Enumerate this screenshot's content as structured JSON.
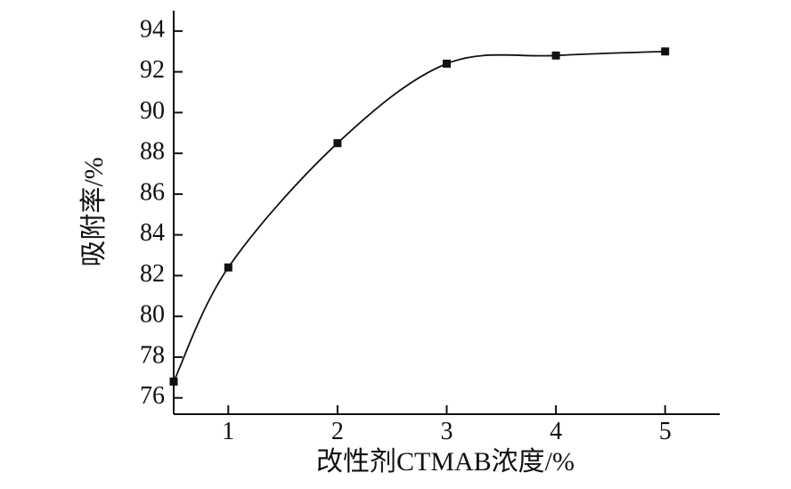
{
  "chart_data": {
    "type": "line",
    "x_label": "改性剂CTMAB浓度/%",
    "y_label": "吸附率/%",
    "x": [
      0.5,
      1,
      2,
      3,
      4,
      5
    ],
    "values": [
      76.8,
      82.4,
      88.5,
      92.4,
      92.8,
      93.0
    ],
    "color": "#111111",
    "xlim": [
      0.5,
      5.5
    ],
    "xticks": [
      1,
      2,
      3,
      4,
      5
    ],
    "ylim": [
      75.2,
      95
    ],
    "yticks": [
      76,
      78,
      80,
      82,
      84,
      86,
      88,
      90,
      92,
      94
    ],
    "grid": false
  }
}
